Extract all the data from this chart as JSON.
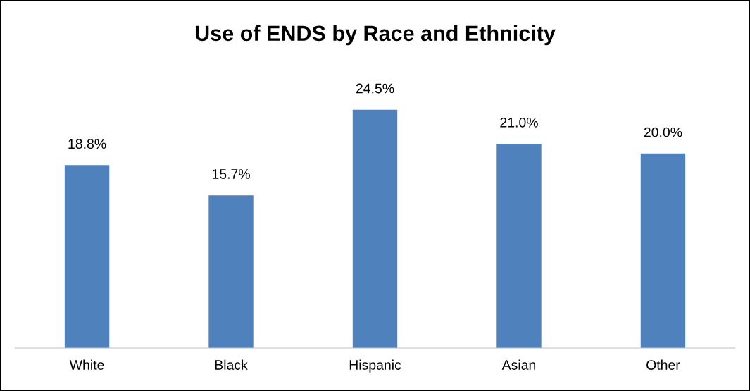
{
  "chart_data": {
    "type": "bar",
    "title": "Use of ENDS by Race and Ethnicity",
    "categories": [
      "White",
      "Black",
      "Hispanic",
      "Asian",
      "Other"
    ],
    "values": [
      18.8,
      15.7,
      24.5,
      21.0,
      20.0
    ],
    "value_labels": [
      "18.8%",
      "15.7%",
      "24.5%",
      "21.0%",
      "20.0%"
    ],
    "color": "#4f81bd",
    "grid": false,
    "tick_labels": "x"
  }
}
